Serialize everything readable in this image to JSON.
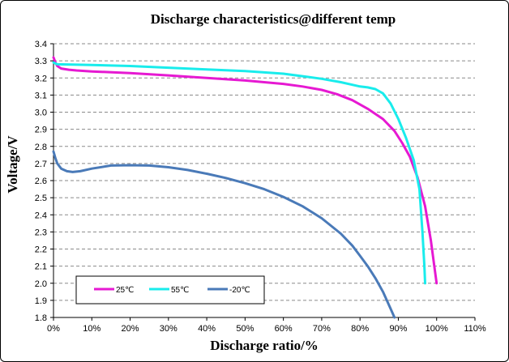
{
  "chart_data": {
    "type": "line",
    "title": "Discharge characteristics@different temp",
    "xlabel": "Discharge ratio/%",
    "ylabel": "Voltage/V",
    "xlim": [
      0,
      110
    ],
    "ylim": [
      1.8,
      3.4
    ],
    "x_ticks": [
      0,
      10,
      20,
      30,
      40,
      50,
      60,
      70,
      80,
      90,
      100,
      110
    ],
    "x_tick_labels": [
      "0%",
      "10%",
      "20%",
      "30%",
      "40%",
      "50%",
      "60%",
      "70%",
      "80%",
      "90%",
      "100%",
      "110%"
    ],
    "y_ticks": [
      1.8,
      1.9,
      2.0,
      2.1,
      2.2,
      2.3,
      2.4,
      2.5,
      2.6,
      2.7,
      2.8,
      2.9,
      3.0,
      3.1,
      3.2,
      3.3,
      3.4
    ],
    "y_tick_labels": [
      "1.8",
      "1.9",
      "2.0",
      "2.1",
      "2.2",
      "2.3",
      "2.4",
      "2.5",
      "2.6",
      "2.7",
      "2.8",
      "2.9",
      "3.0",
      "3.1",
      "3.2",
      "3.3",
      "3.4"
    ],
    "grid": "horizontal dashed",
    "legend_position": "bottom-left",
    "series": [
      {
        "name": "25℃",
        "color": "#e619d2",
        "points": [
          [
            0,
            3.32
          ],
          [
            0.5,
            3.29
          ],
          [
            1,
            3.27
          ],
          [
            2,
            3.255
          ],
          [
            4,
            3.248
          ],
          [
            6,
            3.244
          ],
          [
            10,
            3.238
          ],
          [
            20,
            3.228
          ],
          [
            30,
            3.215
          ],
          [
            40,
            3.2
          ],
          [
            50,
            3.185
          ],
          [
            60,
            3.165
          ],
          [
            65,
            3.15
          ],
          [
            70,
            3.13
          ],
          [
            74,
            3.105
          ],
          [
            78,
            3.07
          ],
          [
            82,
            3.02
          ],
          [
            86,
            2.96
          ],
          [
            89,
            2.89
          ],
          [
            91,
            2.82
          ],
          [
            93,
            2.74
          ],
          [
            95,
            2.62
          ],
          [
            97,
            2.45
          ],
          [
            98.5,
            2.25
          ],
          [
            99.5,
            2.08
          ],
          [
            100,
            2.0
          ]
        ]
      },
      {
        "name": "55℃",
        "color": "#19ecec",
        "points": [
          [
            0,
            3.29
          ],
          [
            1,
            3.28
          ],
          [
            5,
            3.278
          ],
          [
            10,
            3.276
          ],
          [
            20,
            3.27
          ],
          [
            30,
            3.26
          ],
          [
            40,
            3.25
          ],
          [
            50,
            3.24
          ],
          [
            60,
            3.225
          ],
          [
            65,
            3.21
          ],
          [
            70,
            3.195
          ],
          [
            75,
            3.175
          ],
          [
            78,
            3.16
          ],
          [
            80,
            3.15
          ],
          [
            82,
            3.145
          ],
          [
            84,
            3.135
          ],
          [
            86,
            3.11
          ],
          [
            88,
            3.05
          ],
          [
            90,
            2.96
          ],
          [
            92,
            2.85
          ],
          [
            94,
            2.72
          ],
          [
            95.5,
            2.55
          ],
          [
            96.3,
            2.3
          ],
          [
            96.8,
            2.1
          ],
          [
            97,
            2.0
          ]
        ]
      },
      {
        "name": "-20℃",
        "color": "#4a7ab8",
        "points": [
          [
            0,
            2.77
          ],
          [
            0.5,
            2.73
          ],
          [
            1,
            2.7
          ],
          [
            2,
            2.67
          ],
          [
            3.5,
            2.655
          ],
          [
            5,
            2.65
          ],
          [
            7,
            2.655
          ],
          [
            10,
            2.67
          ],
          [
            15,
            2.688
          ],
          [
            20,
            2.69
          ],
          [
            25,
            2.688
          ],
          [
            30,
            2.678
          ],
          [
            35,
            2.662
          ],
          [
            40,
            2.64
          ],
          [
            45,
            2.615
          ],
          [
            50,
            2.585
          ],
          [
            55,
            2.55
          ],
          [
            60,
            2.505
          ],
          [
            65,
            2.45
          ],
          [
            70,
            2.38
          ],
          [
            75,
            2.29
          ],
          [
            78,
            2.22
          ],
          [
            80,
            2.16
          ],
          [
            82,
            2.1
          ],
          [
            84,
            2.03
          ],
          [
            86,
            1.95
          ],
          [
            88,
            1.85
          ],
          [
            89,
            1.8
          ]
        ]
      }
    ]
  }
}
